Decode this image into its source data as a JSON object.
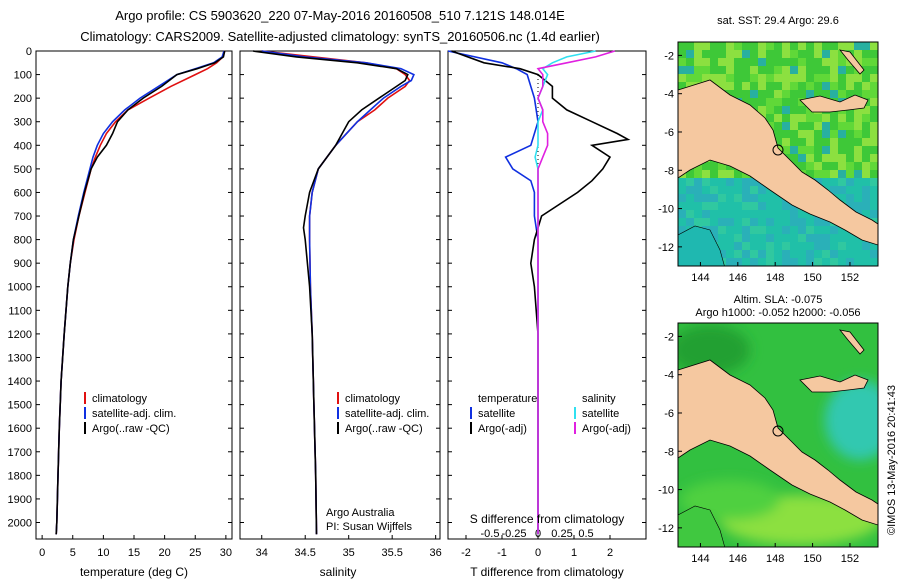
{
  "header": {
    "line1": "Argo profile: CS 5903620_220 07-May-2016 20160508_510 7.121S 148.014E",
    "line2": "Climatology: CARS2009. Satellite-adjusted climatology: synTS_20160506.nc (1.4d earlier)"
  },
  "colors": {
    "climatology": "#e01010",
    "satellite": "#1030e0",
    "argo": "#000000",
    "salinity_sat": "#30e0f0",
    "salinity_argo": "#e020e0",
    "land": "#f5c8a0",
    "sea_green": "#30c030"
  },
  "footer": {
    "credit": "©IMOS 13-May-2016 20:41:43"
  },
  "chart_data": [
    {
      "type": "line",
      "name": "temperature",
      "xlabel": "temperature (deg C)",
      "xlim": [
        -1,
        31
      ],
      "ylim": [
        2070,
        0
      ],
      "xticks": [
        "0",
        "5",
        "10",
        "15",
        "20",
        "25",
        "30"
      ],
      "yticks": [
        "0",
        "100",
        "200",
        "300",
        "400",
        "500",
        "600",
        "700",
        "800",
        "900",
        "1000",
        "1100",
        "1200",
        "1300",
        "1400",
        "1500",
        "1600",
        "1700",
        "1800",
        "1900",
        "2000"
      ],
      "legend": [
        "climatology",
        "satellite-adj. clim.",
        "Argo(..raw -QC)"
      ],
      "series": [
        {
          "name": "climatology",
          "color": "#e01010",
          "depth": [
            0,
            25,
            50,
            75,
            100,
            150,
            200,
            250,
            300,
            350,
            400,
            450,
            500,
            600,
            700,
            800,
            900,
            1000,
            1200,
            1400,
            1600,
            1800,
            2000,
            2050
          ],
          "values": [
            29.8,
            29.5,
            28.5,
            27.0,
            25.0,
            21.0,
            17.5,
            14.0,
            12.0,
            10.5,
            9.5,
            8.7,
            8.0,
            7.0,
            6.0,
            5.2,
            4.6,
            4.2,
            3.6,
            3.1,
            2.8,
            2.6,
            2.4,
            2.3
          ]
        },
        {
          "name": "satellite-adj. clim.",
          "color": "#1030e0",
          "depth": [
            0,
            25,
            50,
            75,
            100,
            150,
            200,
            250,
            300,
            350,
            400,
            450,
            500,
            600,
            700,
            800,
            900,
            1000,
            1200,
            1400,
            1600,
            1800,
            2000,
            2050
          ],
          "values": [
            29.7,
            29.4,
            28.0,
            25.0,
            22.0,
            19.0,
            16.0,
            13.5,
            11.5,
            10.0,
            9.0,
            8.3,
            7.8,
            6.8,
            5.9,
            5.1,
            4.6,
            4.2,
            3.6,
            3.1,
            2.8,
            2.6,
            2.4,
            2.3
          ]
        },
        {
          "name": "Argo(..raw -QC)",
          "color": "#000000",
          "depth": [
            0,
            25,
            50,
            75,
            100,
            150,
            200,
            250,
            300,
            350,
            400,
            450,
            500,
            600,
            700,
            800,
            900,
            1000,
            1200,
            1400,
            1600,
            1800,
            2000,
            2050
          ],
          "values": [
            29.8,
            29.6,
            28.2,
            25.3,
            22.0,
            19.5,
            16.5,
            14.0,
            12.3,
            11.5,
            10.5,
            9.0,
            8.0,
            6.9,
            6.0,
            5.1,
            4.6,
            4.2,
            3.6,
            3.1,
            2.8,
            2.6,
            2.4,
            2.3
          ]
        }
      ]
    },
    {
      "type": "line",
      "name": "salinity",
      "xlabel": "salinity",
      "xlim": [
        33.75,
        36.05
      ],
      "ylim": [
        2070,
        0
      ],
      "xticks": [
        "34",
        "34.5",
        "35",
        "35.5",
        "36"
      ],
      "legend": [
        "climatology",
        "satellite-adj. clim.",
        "Argo(..raw -QC)"
      ],
      "annotation": [
        "Argo Australia",
        "PI: Susan Wijffels"
      ],
      "series": [
        {
          "name": "climatology",
          "color": "#e01010",
          "depth": [
            0,
            25,
            50,
            75,
            100,
            125,
            150,
            200,
            250,
            300,
            400,
            500,
            600,
            700,
            800,
            1000,
            1200,
            1500,
            1800,
            2050
          ],
          "values": [
            34.0,
            34.6,
            35.2,
            35.55,
            35.65,
            35.7,
            35.65,
            35.45,
            35.3,
            35.1,
            34.85,
            34.65,
            34.58,
            34.55,
            34.55,
            34.56,
            34.58,
            34.6,
            34.62,
            34.63
          ]
        },
        {
          "name": "satellite-adj. clim.",
          "color": "#1030e0",
          "depth": [
            0,
            25,
            50,
            75,
            100,
            125,
            150,
            200,
            250,
            300,
            400,
            500,
            600,
            700,
            800,
            1000,
            1200,
            1500,
            1800,
            2050
          ],
          "values": [
            34.0,
            34.5,
            35.2,
            35.6,
            35.75,
            35.72,
            35.6,
            35.4,
            35.25,
            35.1,
            34.85,
            34.65,
            34.58,
            34.55,
            34.55,
            34.56,
            34.58,
            34.6,
            34.62,
            34.63
          ]
        },
        {
          "name": "Argo(..raw -QC)",
          "color": "#000000",
          "depth": [
            0,
            25,
            50,
            75,
            100,
            125,
            150,
            200,
            250,
            300,
            400,
            500,
            600,
            700,
            750,
            800,
            1000,
            1200,
            1500,
            1800,
            2050
          ],
          "values": [
            33.9,
            34.4,
            35.1,
            35.55,
            35.68,
            35.65,
            35.55,
            35.35,
            35.15,
            35.0,
            34.85,
            34.65,
            34.55,
            34.5,
            34.48,
            34.5,
            34.55,
            34.58,
            34.6,
            34.62,
            34.63
          ]
        }
      ]
    },
    {
      "type": "line",
      "name": "differences",
      "xlabel": "T difference from climatology",
      "xlabel_top": "S difference from climatology",
      "xlim": [
        -2.5,
        3.0
      ],
      "ylim": [
        2070,
        0
      ],
      "xticks": [
        "-2",
        "-1",
        "0",
        "1",
        "2"
      ],
      "xticks_top": [
        "-0.5",
        "-0.25",
        "0",
        "0.25",
        "0.5"
      ],
      "legend_temp": [
        "temperature",
        "satellite",
        "Argo(-adj)"
      ],
      "legend_sal": [
        "salinity",
        "satellite",
        "Argo(-adj)"
      ],
      "series": [
        {
          "name": "T satellite",
          "color": "#1030e0",
          "depth": [
            0,
            50,
            75,
            100,
            150,
            200,
            300,
            400,
            450,
            500,
            550,
            600,
            700,
            800,
            900,
            1000,
            1200,
            1500,
            1800,
            2050
          ],
          "values": [
            -2.5,
            -1.0,
            -0.6,
            -0.3,
            -0.2,
            -0.1,
            0.0,
            -0.2,
            -0.9,
            -0.7,
            -0.2,
            -0.1,
            -0.1,
            0.0,
            0.0,
            0.0,
            0.0,
            0.0,
            0.0,
            0.0
          ]
        },
        {
          "name": "T Argo(-adj)",
          "color": "#000000",
          "depth": [
            0,
            50,
            75,
            100,
            150,
            200,
            250,
            300,
            350,
            375,
            400,
            450,
            500,
            550,
            600,
            700,
            800,
            900,
            1000,
            1200,
            1500,
            1800,
            2050
          ],
          "values": [
            -2.4,
            -1.5,
            -0.5,
            0.0,
            0.4,
            0.4,
            0.8,
            1.5,
            2.2,
            2.5,
            1.5,
            2.0,
            1.8,
            1.5,
            1.1,
            0.1,
            -0.1,
            -0.2,
            -0.1,
            0.0,
            0.0,
            0.0,
            0.0
          ]
        },
        {
          "name": "S satellite",
          "color": "#30e0f0",
          "depth": [
            0,
            25,
            50,
            75,
            100,
            150,
            200,
            250,
            300,
            400,
            450,
            500,
            600,
            700,
            800,
            1000,
            1500,
            2050
          ],
          "values": [
            0.6,
            0.3,
            0.15,
            0.05,
            0.1,
            0.05,
            0.0,
            0.05,
            0.0,
            0.0,
            -0.03,
            0.0,
            0.0,
            0.0,
            0.0,
            0.0,
            0.0,
            0.0
          ]
        },
        {
          "name": "S Argo(-adj)",
          "color": "#e020e0",
          "depth": [
            0,
            25,
            50,
            75,
            100,
            150,
            200,
            250,
            300,
            350,
            400,
            450,
            500,
            600,
            700,
            800,
            1000,
            1500,
            2050
          ],
          "values": [
            0.8,
            0.6,
            0.3,
            0.0,
            0.05,
            0.05,
            0.0,
            0.05,
            0.05,
            0.1,
            0.1,
            0.05,
            0.0,
            0.0,
            0.0,
            0.0,
            0.0,
            0.0,
            0.0
          ]
        }
      ]
    },
    {
      "type": "heatmap",
      "name": "sst-map",
      "title": "sat. SST: 29.4 Argo: 29.6",
      "xticks": [
        "144",
        "146",
        "148",
        "150",
        "152"
      ],
      "yticks": [
        "-2",
        "-4",
        "-6",
        "-8",
        "-10",
        "-12"
      ],
      "xlim": [
        142.8,
        153.5
      ],
      "ylim": [
        -13.0,
        -1.3
      ],
      "marker": {
        "lon": 148.014,
        "lat": -7.121
      }
    },
    {
      "type": "heatmap",
      "name": "sla-map",
      "title": "Altim. SLA: -0.075",
      "subtitle": "Argo h1000: -0.052 h2000: -0.056",
      "xticks": [
        "144",
        "146",
        "148",
        "150",
        "152"
      ],
      "yticks": [
        "-2",
        "-4",
        "-6",
        "-8",
        "-10",
        "-12"
      ],
      "xlim": [
        142.8,
        153.5
      ],
      "ylim": [
        -13.0,
        -1.3
      ],
      "marker": {
        "lon": 148.014,
        "lat": -7.121
      }
    }
  ]
}
